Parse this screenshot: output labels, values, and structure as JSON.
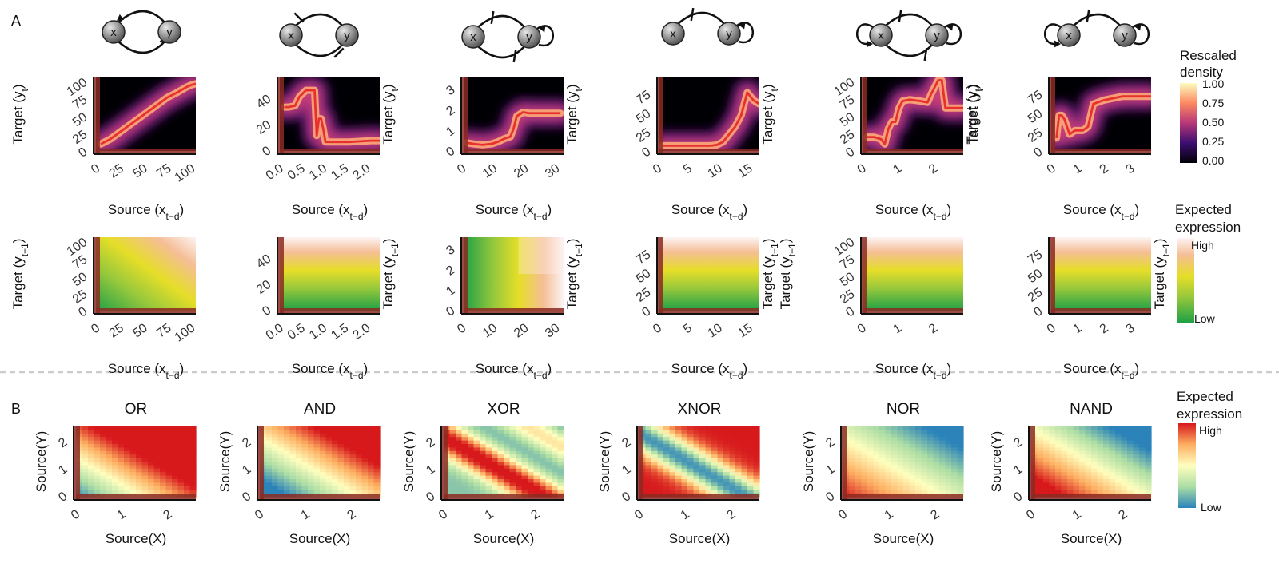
{
  "panel_labels": {
    "a": "A",
    "b": "B"
  },
  "legends": {
    "density": {
      "title_1": "Rescaled",
      "title_2": "density",
      "ticks": [
        "1.00",
        "0.75",
        "0.50",
        "0.25",
        "0.00"
      ]
    },
    "expected_a": {
      "title_1": "Expected",
      "title_2": "expression",
      "high": "High",
      "low": "Low"
    },
    "expected_b": {
      "title_1": "Expected",
      "title_2": "expression",
      "high": "High",
      "low": "Low"
    }
  },
  "colors": {
    "trace": "#e8312f",
    "rug": "#8b2a22",
    "density_bg": "#000004",
    "divider": "#cccccc"
  },
  "chart_data": [
    {
      "id": "a1_density",
      "type": "heatmap",
      "network": "x-y mutual activation",
      "xlabel": "Source (x",
      "xsub": "t−d",
      "xclose": ")",
      "ylabel": "Target (y",
      "ysub": "t",
      "yclose": ")",
      "ylabel_side": "left",
      "x_ticks": [
        "0",
        "25",
        "50",
        "75",
        "100"
      ],
      "y_ticks": [
        "0",
        "25",
        "50",
        "75",
        "100"
      ],
      "xlim": [
        -5,
        100
      ],
      "ylim": [
        -2,
        104
      ],
      "trace_x": [
        0,
        10,
        20,
        30,
        40,
        50,
        60,
        70,
        80,
        90,
        95,
        100
      ],
      "trace_y": [
        8,
        15,
        25,
        35,
        45,
        55,
        65,
        75,
        82,
        90,
        93,
        95
      ]
    },
    {
      "id": "a2_density",
      "type": "heatmap",
      "network": "x-y mutual repression",
      "xlabel": "Source (x",
      "xsub": "t−d",
      "xclose": ")",
      "ylabel": "Target (y",
      "ysub": "t",
      "yclose": ")",
      "ylabel_side": "right",
      "x_ticks": [
        "0.0",
        "0.5",
        "1.0",
        "1.5",
        "2.0"
      ],
      "y_ticks": [
        "0",
        "20",
        "40"
      ],
      "xlim": [
        -0.1,
        2.2
      ],
      "ylim": [
        -2,
        55
      ],
      "trace_x": [
        0,
        0.1,
        0.25,
        0.35,
        0.5,
        0.6,
        0.7,
        0.75,
        0.8,
        0.85,
        0.9,
        0.95,
        1.0,
        1.1,
        1.5,
        2.0,
        2.2
      ],
      "trace_y": [
        32,
        32,
        33,
        40,
        45,
        45,
        45,
        10,
        23,
        23,
        15,
        5,
        5,
        5,
        5,
        6,
        6
      ]
    },
    {
      "id": "a3_density",
      "type": "heatmap",
      "network": "x represses y, y self-activates",
      "xlabel": "Source (x",
      "xsub": "t−d",
      "xclose": ")",
      "ylabel": "Target (y",
      "ysub": "t",
      "yclose": ")",
      "ylabel_side": "right",
      "x_ticks": [
        "0",
        "10",
        "20",
        "30"
      ],
      "y_ticks": [
        "0",
        "1",
        "2",
        "3"
      ],
      "xlim": [
        -1,
        31
      ],
      "ylim": [
        -0.1,
        3.5
      ],
      "trace_x": [
        0,
        2,
        5,
        8,
        10,
        12,
        14,
        15,
        16,
        18,
        20,
        25,
        30
      ],
      "trace_y": [
        0.3,
        0.25,
        0.2,
        0.25,
        0.35,
        0.5,
        0.6,
        1.0,
        1.6,
        1.8,
        1.75,
        1.75,
        1.75
      ]
    },
    {
      "id": "a4_density",
      "type": "heatmap",
      "network": "x represses y, y self-activates",
      "xlabel": "Source (x",
      "xsub": "t−d",
      "xclose": ")",
      "ylabel": "Target (y",
      "ysub": "t",
      "yclose": ")",
      "ylabel_side": "right",
      "x_ticks": [
        "0",
        "5",
        "10",
        "15"
      ],
      "y_ticks": [
        "0",
        "25",
        "50",
        "75"
      ],
      "xlim": [
        -0.5,
        16
      ],
      "ylim": [
        -2,
        95
      ],
      "trace_x": [
        0,
        2,
        5,
        8,
        9,
        10,
        11,
        12,
        13,
        14,
        15,
        16
      ],
      "trace_y": [
        5,
        5,
        5,
        5,
        6,
        10,
        20,
        30,
        45,
        75,
        65,
        60
      ]
    },
    {
      "id": "a5_density",
      "type": "heatmap",
      "network": "x and y self-activate, mutual repression",
      "xlabel": "Source (x",
      "xsub": "t−d",
      "xclose": ")",
      "ylabel": "Target (y",
      "ysub": "t",
      "yclose": ")",
      "ylabel_side": "right",
      "x_ticks": [
        "0",
        "1",
        "2"
      ],
      "y_ticks": [
        "0",
        "25",
        "50",
        "75",
        "100"
      ],
      "xlim": [
        -0.1,
        2.7
      ],
      "ylim": [
        -2,
        104
      ],
      "trace_x": [
        0,
        0.2,
        0.4,
        0.5,
        0.6,
        0.7,
        0.8,
        0.9,
        1.0,
        1.2,
        1.5,
        1.7,
        1.8,
        2.0,
        2.1,
        2.2,
        2.7
      ],
      "trace_y": [
        18,
        18,
        15,
        8,
        30,
        40,
        40,
        60,
        70,
        72,
        70,
        68,
        80,
        100,
        100,
        60,
        60
      ]
    },
    {
      "id": "a6_density",
      "type": "heatmap",
      "network": "x self-activates and represses y, y self-activates",
      "xlabel": "Source (x",
      "xsub": "t−d",
      "xclose": ")",
      "ylabel": "Target (y",
      "ysub": "t",
      "yclose": ")",
      "ylabel_side": "left",
      "x_ticks": [
        "0",
        "1",
        "2",
        "3"
      ],
      "y_ticks": [
        "0",
        "25",
        "50",
        "75"
      ],
      "xlim": [
        -0.2,
        3.6
      ],
      "ylim": [
        -2,
        95
      ],
      "trace_x": [
        0,
        0.1,
        0.2,
        0.3,
        0.5,
        0.7,
        1.0,
        1.2,
        1.4,
        1.8,
        2.5,
        3.6
      ],
      "trace_y": [
        15,
        45,
        45,
        40,
        20,
        25,
        25,
        30,
        60,
        65,
        70,
        70
      ]
    },
    {
      "id": "a1_expected",
      "type": "heatmap",
      "xlabel": "Source (x",
      "xsub": "t−d",
      "xclose": ")",
      "ylabel": "Target (y",
      "ysub": "t−1",
      "yclose": ")",
      "ylabel_side": "left",
      "x_ticks": [
        "0",
        "25",
        "50",
        "75",
        "100"
      ],
      "y_ticks": [
        "0",
        "25",
        "50",
        "75",
        "100"
      ],
      "xlim": [
        -5,
        100
      ],
      "ylim": [
        -2,
        104
      ],
      "surface": "additive"
    },
    {
      "id": "a2_expected",
      "type": "heatmap",
      "xlabel": "Source (x",
      "xsub": "t−d",
      "xclose": ")",
      "ylabel": "Target (y",
      "ysub": "t−1",
      "yclose": ")",
      "ylabel_side": "right",
      "x_ticks": [
        "0.0",
        "0.5",
        "1.0",
        "1.5",
        "2.0"
      ],
      "y_ticks": [
        "0",
        "20",
        "40"
      ],
      "xlim": [
        -0.1,
        2.2
      ],
      "ylim": [
        -2,
        55
      ],
      "surface": "y_only"
    },
    {
      "id": "a3_expected",
      "type": "heatmap",
      "xlabel": "Source (x",
      "xsub": "t−d",
      "xclose": ")",
      "ylabel": "Target (y",
      "ysub": "t−1",
      "yclose": ")",
      "ylabel_side": "right",
      "x_ticks": [
        "0",
        "10",
        "20",
        "30"
      ],
      "y_ticks": [
        "0",
        "1",
        "2",
        "3"
      ],
      "xlim": [
        -1,
        31
      ],
      "ylim": [
        -0.1,
        3.5
      ],
      "surface": "x_only"
    },
    {
      "id": "a4_expected",
      "type": "heatmap",
      "xlabel": "Source (x",
      "xsub": "t−d",
      "xclose": ")",
      "ylabel": "Target (y",
      "ysub": "t−1",
      "yclose": ")",
      "ylabel_side": "right",
      "x_ticks": [
        "0",
        "5",
        "10",
        "15"
      ],
      "y_ticks": [
        "0",
        "25",
        "50",
        "75"
      ],
      "xlim": [
        -0.5,
        16
      ],
      "ylim": [
        -2,
        95
      ],
      "surface": "y_only"
    },
    {
      "id": "a5_expected",
      "type": "heatmap",
      "xlabel": "Source (x",
      "xsub": "t−d",
      "xclose": ")",
      "ylabel": "Target (y",
      "ysub": "t−1",
      "yclose": ")",
      "ylabel_side": "left",
      "x_ticks": [
        "0",
        "1",
        "2"
      ],
      "y_ticks": [
        "0",
        "25",
        "50",
        "75",
        "100"
      ],
      "xlim": [
        -0.1,
        2.7
      ],
      "ylim": [
        -2,
        104
      ],
      "surface": "y_only"
    },
    {
      "id": "a6_expected",
      "type": "heatmap",
      "xlabel": "Source (x",
      "xsub": "t−d",
      "xclose": ")",
      "ylabel": "Target (y",
      "ysub": "t−1",
      "yclose": ")",
      "ylabel_side": "right",
      "x_ticks": [
        "0",
        "1",
        "2",
        "3"
      ],
      "y_ticks": [
        "0",
        "25",
        "50",
        "75"
      ],
      "xlim": [
        -0.2,
        3.6
      ],
      "ylim": [
        -2,
        95
      ],
      "surface": "y_only"
    },
    {
      "id": "b_or",
      "type": "heatmap",
      "title": "OR",
      "xlabel": "Source(X)",
      "ylabel": "Source(Y)",
      "x_ticks": [
        "0",
        "1",
        "2"
      ],
      "y_ticks": [
        "0",
        "1",
        "2"
      ],
      "xlim": [
        -0.1,
        2.5
      ],
      "ylim": [
        -0.1,
        2.5
      ],
      "logic": "OR"
    },
    {
      "id": "b_and",
      "type": "heatmap",
      "title": "AND",
      "xlabel": "Source(X)",
      "ylabel": "Source(Y)",
      "x_ticks": [
        "0",
        "1",
        "2"
      ],
      "y_ticks": [
        "0",
        "1",
        "2"
      ],
      "xlim": [
        -0.1,
        2.5
      ],
      "ylim": [
        -0.1,
        2.5
      ],
      "logic": "AND"
    },
    {
      "id": "b_xor",
      "type": "heatmap",
      "title": "XOR",
      "xlabel": "Source(X)",
      "ylabel": "Source(Y)",
      "x_ticks": [
        "0",
        "1",
        "2"
      ],
      "y_ticks": [
        "0",
        "1",
        "2"
      ],
      "xlim": [
        -0.1,
        2.5
      ],
      "ylim": [
        -0.1,
        2.5
      ],
      "logic": "XOR"
    },
    {
      "id": "b_xnor",
      "type": "heatmap",
      "title": "XNOR",
      "xlabel": "Source(X)",
      "ylabel": "Source(Y)",
      "x_ticks": [
        "0",
        "1",
        "2"
      ],
      "y_ticks": [
        "0",
        "1",
        "2"
      ],
      "xlim": [
        -0.1,
        2.5
      ],
      "ylim": [
        -0.1,
        2.5
      ],
      "logic": "XNOR"
    },
    {
      "id": "b_nor",
      "type": "heatmap",
      "title": "NOR",
      "xlabel": "Source(X)",
      "ylabel": "Source(Y)",
      "x_ticks": [
        "0",
        "1",
        "2"
      ],
      "y_ticks": [
        "0",
        "1",
        "2"
      ],
      "xlim": [
        -0.1,
        2.5
      ],
      "ylim": [
        -0.1,
        2.5
      ],
      "logic": "NOR"
    },
    {
      "id": "b_nand",
      "type": "heatmap",
      "title": "NAND",
      "xlabel": "Source(X)",
      "ylabel": "Source(Y)",
      "x_ticks": [
        "0",
        "1",
        "2"
      ],
      "y_ticks": [
        "0",
        "1",
        "2"
      ],
      "xlim": [
        -0.1,
        2.5
      ],
      "ylim": [
        -0.1,
        2.5
      ],
      "logic": "NAND"
    }
  ],
  "networks": [
    {
      "edges": "mutual-activation"
    },
    {
      "edges": "mutual-repression"
    },
    {
      "edges": "repress-xy_self-y"
    },
    {
      "edges": "repress-xy_self-y"
    },
    {
      "edges": "self-both_mutual-repression"
    },
    {
      "edges": "self-both_repress-xy"
    }
  ],
  "node_labels": {
    "x": "x",
    "y": "y"
  }
}
